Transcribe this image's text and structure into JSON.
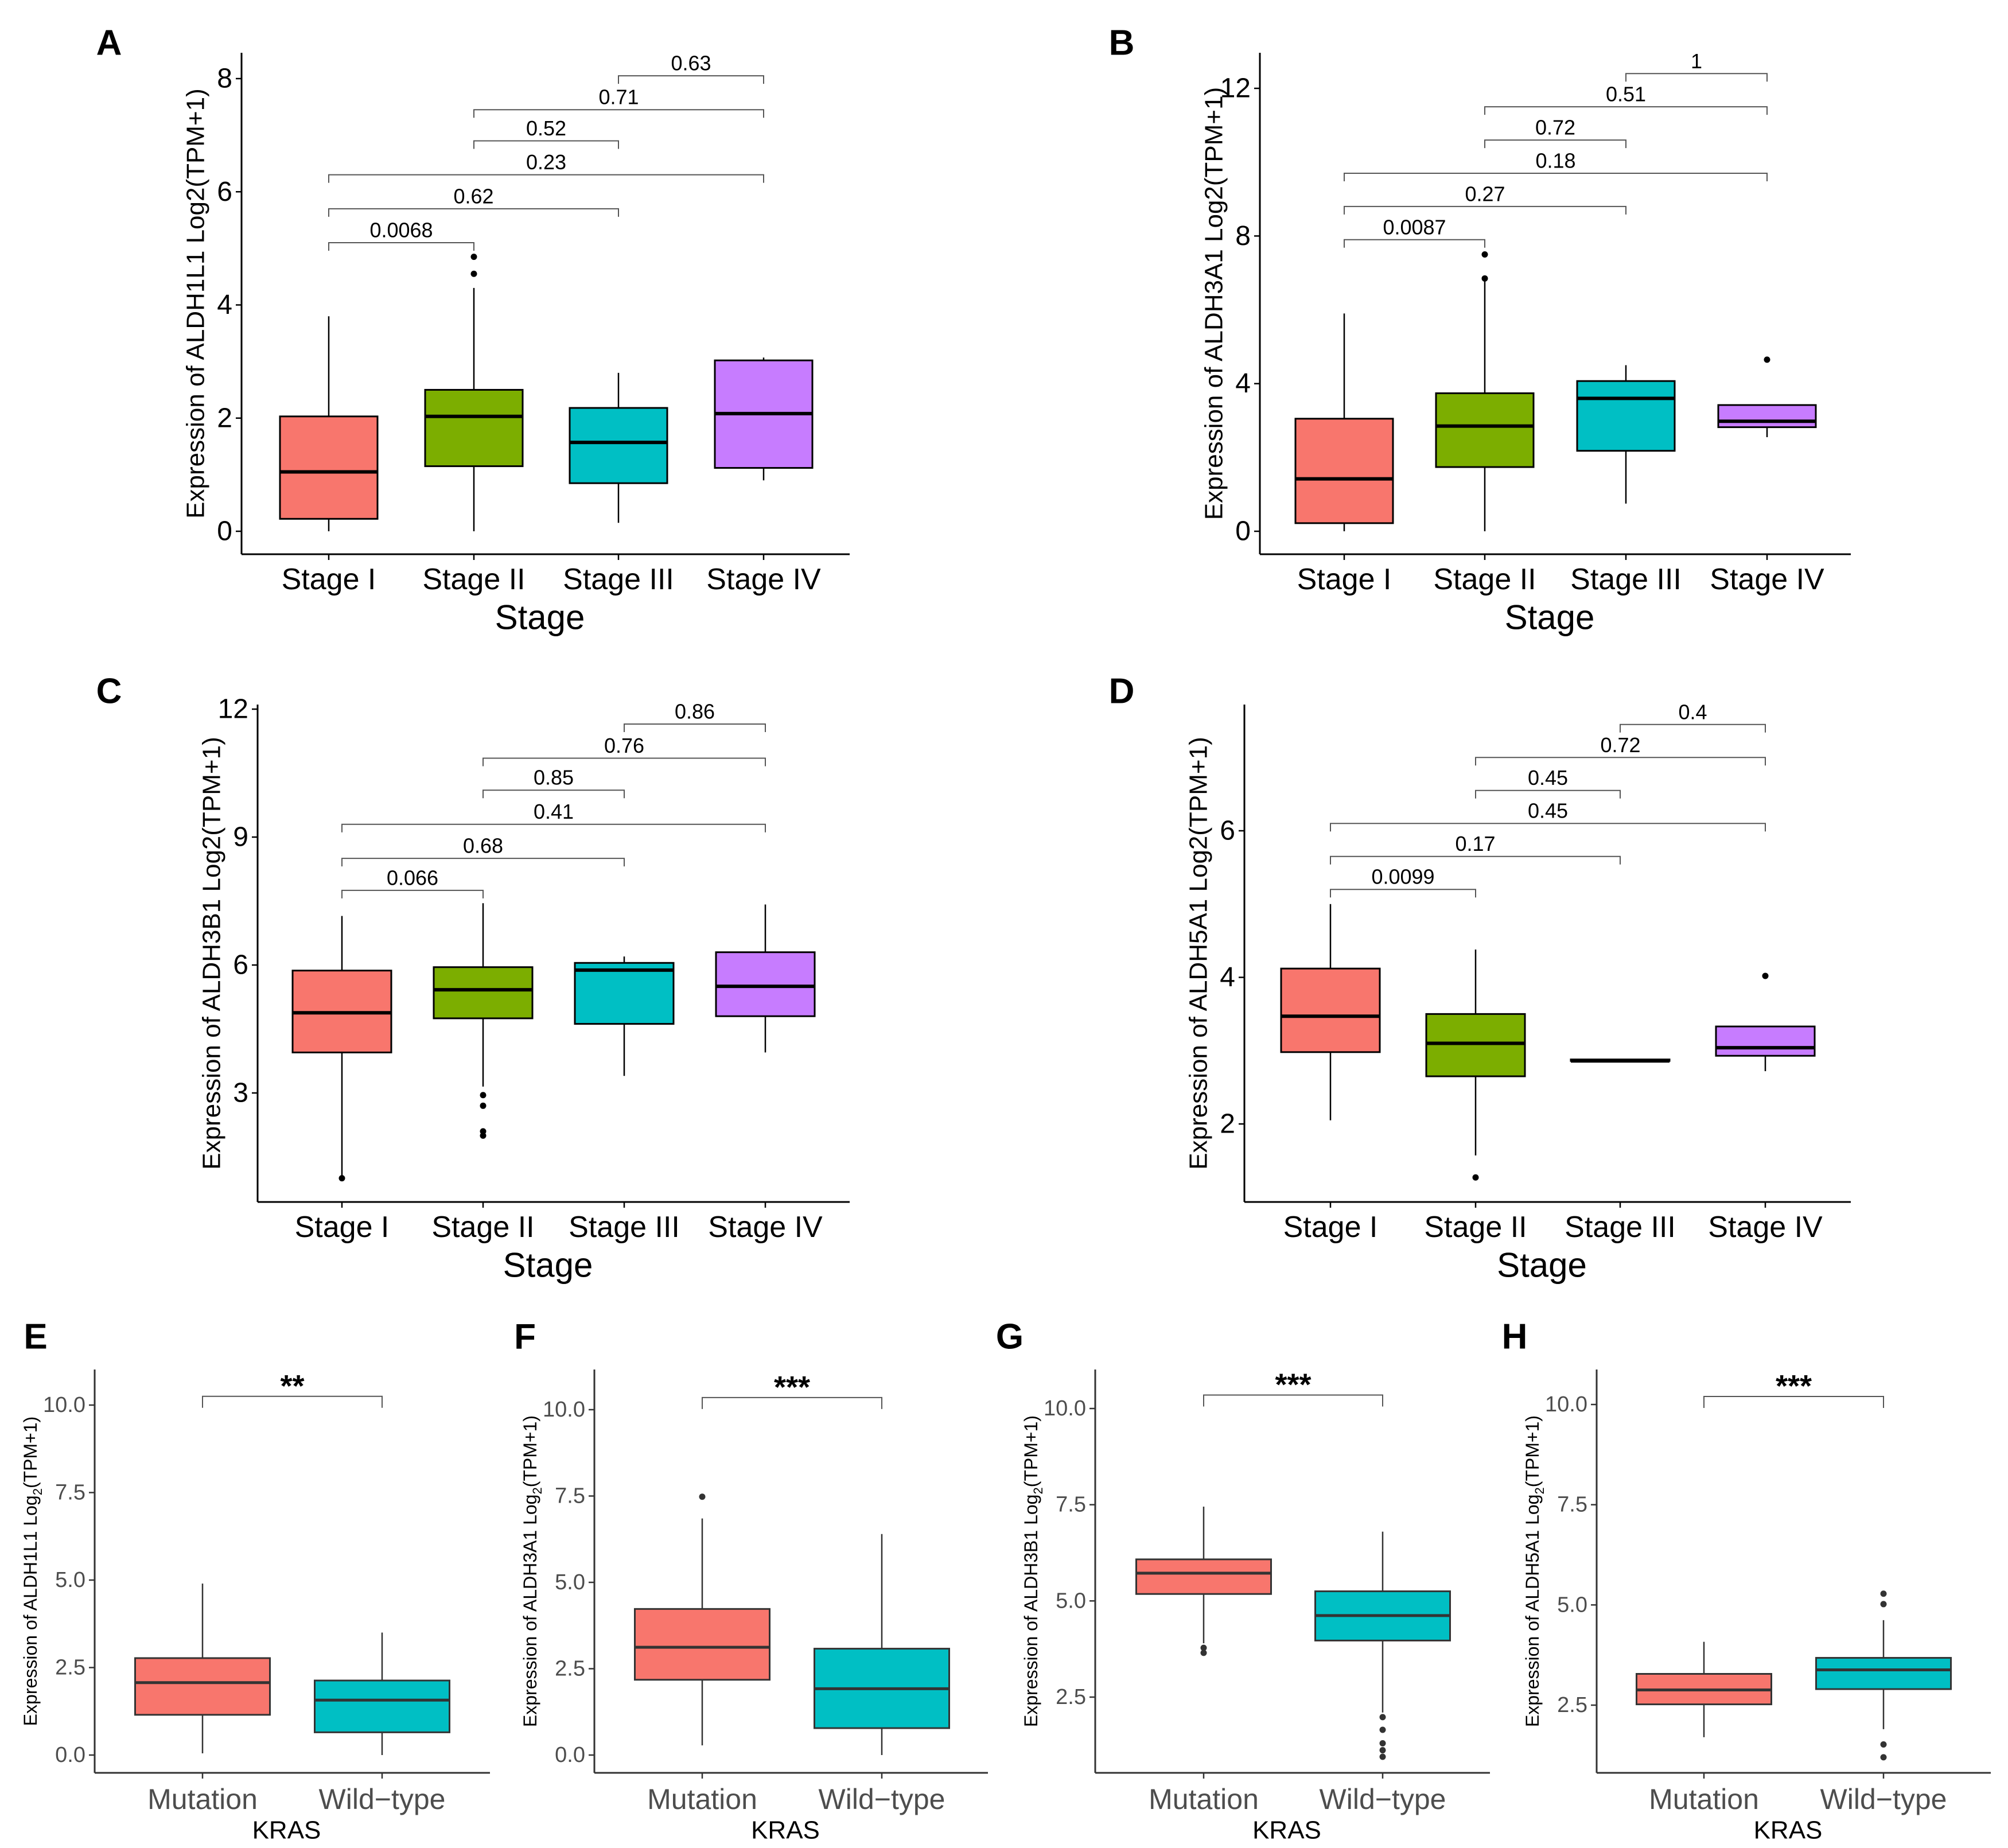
{
  "figure_title": "",
  "chart_data": [
    {
      "panel": "A",
      "type": "boxplot",
      "ylabel": "Expression of ALDH1L1 Log2(TPM+1)",
      "xlabel": "Stage",
      "categories": [
        "Stage I",
        "Stage II",
        "Stage III",
        "Stage IV"
      ],
      "yticks": [
        "0",
        "2",
        "4",
        "6",
        "8"
      ],
      "ytick_values": [
        0,
        2,
        4,
        6,
        8
      ],
      "ylim": [
        -0.9,
        8.5
      ],
      "colors": [
        "#F8766D",
        "#7CAE00",
        "#00BFC4",
        "#C77CFF"
      ],
      "boxes": [
        {
          "min": 0.0,
          "q1": 0.22,
          "median": 1.05,
          "q3": 2.03,
          "max": 3.8,
          "outliers": []
        },
        {
          "min": 0.0,
          "q1": 1.15,
          "median": 2.03,
          "q3": 2.5,
          "max": 4.3,
          "outliers": [
            4.55,
            4.85
          ]
        },
        {
          "min": 0.15,
          "q1": 0.85,
          "median": 1.57,
          "q3": 2.18,
          "max": 2.8,
          "outliers": []
        },
        {
          "min": 0.9,
          "q1": 1.12,
          "median": 2.08,
          "q3": 3.02,
          "max": 3.07,
          "outliers": []
        }
      ],
      "comparisons": [
        {
          "from": 0,
          "to": 1,
          "y": 5.1,
          "label": "0.0068"
        },
        {
          "from": 0,
          "to": 2,
          "y": 5.7,
          "label": "0.62"
        },
        {
          "from": 0,
          "to": 3,
          "y": 6.3,
          "label": "0.23"
        },
        {
          "from": 1,
          "to": 2,
          "y": 6.9,
          "label": "0.52"
        },
        {
          "from": 1,
          "to": 3,
          "y": 7.45,
          "label": "0.71"
        },
        {
          "from": 2,
          "to": 3,
          "y": 8.05,
          "label": "0.63"
        }
      ]
    },
    {
      "panel": "B",
      "type": "boxplot",
      "ylabel": "Expression of ALDH3A1 Log2(TPM+1)",
      "xlabel": "Stage",
      "categories": [
        "Stage I",
        "Stage II",
        "Stage III",
        "Stage IV"
      ],
      "yticks": [
        "0",
        "4",
        "8",
        "12"
      ],
      "ytick_values": [
        0,
        4,
        8,
        12
      ],
      "ylim": [
        -0.6,
        12.9
      ],
      "colors": [
        "#F8766D",
        "#7CAE00",
        "#00BFC4",
        "#C77CFF"
      ],
      "boxes": [
        {
          "min": 0.0,
          "q1": 0.22,
          "median": 1.42,
          "q3": 3.05,
          "max": 5.9,
          "outliers": []
        },
        {
          "min": 0.0,
          "q1": 1.74,
          "median": 2.85,
          "q3": 3.74,
          "max": 6.8,
          "outliers": [
            6.85,
            7.5
          ]
        },
        {
          "min": 0.75,
          "q1": 2.18,
          "median": 3.6,
          "q3": 4.07,
          "max": 4.5,
          "outliers": []
        },
        {
          "min": 2.55,
          "q1": 2.82,
          "median": 2.98,
          "q3": 3.42,
          "max": 3.42,
          "outliers": [
            4.65
          ]
        }
      ],
      "comparisons": [
        {
          "from": 0,
          "to": 1,
          "y": 7.9,
          "label": "0.0087"
        },
        {
          "from": 0,
          "to": 2,
          "y": 8.8,
          "label": "0.27"
        },
        {
          "from": 0,
          "to": 3,
          "y": 9.7,
          "label": "0.18"
        },
        {
          "from": 1,
          "to": 2,
          "y": 10.6,
          "label": "0.72"
        },
        {
          "from": 1,
          "to": 3,
          "y": 11.5,
          "label": "0.51"
        },
        {
          "from": 2,
          "to": 3,
          "y": 12.4,
          "label": "1"
        }
      ]
    },
    {
      "panel": "C",
      "type": "boxplot",
      "ylabel": "Expression of ALDH3B1 Log2(TPM+1)",
      "xlabel": "Stage",
      "categories": [
        "Stage I",
        "Stage II",
        "Stage III",
        "Stage IV"
      ],
      "yticks": [
        "3",
        "6",
        "9",
        "12"
      ],
      "ytick_values": [
        3,
        6,
        9,
        12
      ],
      "ylim": [
        0.4,
        12.1
      ],
      "colors": [
        "#F8766D",
        "#7CAE00",
        "#00BFC4",
        "#C77CFF"
      ],
      "boxes": [
        {
          "min": 1.0,
          "q1": 3.95,
          "median": 4.88,
          "q3": 5.87,
          "max": 7.15,
          "outliers": [
            1.0
          ]
        },
        {
          "min": 3.15,
          "q1": 4.75,
          "median": 5.42,
          "q3": 5.95,
          "max": 7.45,
          "outliers": [
            2.0,
            2.1,
            2.7,
            2.95
          ]
        },
        {
          "min": 3.4,
          "q1": 4.62,
          "median": 5.88,
          "q3": 6.05,
          "max": 6.2,
          "outliers": []
        },
        {
          "min": 3.95,
          "q1": 4.8,
          "median": 5.5,
          "q3": 6.3,
          "max": 7.42,
          "outliers": []
        }
      ],
      "comparisons": [
        {
          "from": 0,
          "to": 1,
          "y": 7.75,
          "label": "0.066"
        },
        {
          "from": 0,
          "to": 2,
          "y": 8.5,
          "label": "0.68"
        },
        {
          "from": 0,
          "to": 3,
          "y": 9.3,
          "label": "0.41"
        },
        {
          "from": 1,
          "to": 2,
          "y": 10.1,
          "label": "0.85"
        },
        {
          "from": 1,
          "to": 3,
          "y": 10.85,
          "label": "0.76"
        },
        {
          "from": 2,
          "to": 3,
          "y": 11.65,
          "label": "0.86"
        }
      ]
    },
    {
      "panel": "D",
      "type": "boxplot",
      "ylabel": "Expression of ALDH5A1 Log2(TPM+1)",
      "xlabel": "Stage",
      "categories": [
        "Stage I",
        "Stage II",
        "Stage III",
        "Stage IV"
      ],
      "yticks": [
        "2",
        "4",
        "6"
      ],
      "ytick_values": [
        2,
        4,
        6
      ],
      "ylim": [
        0.95,
        7.8
      ],
      "colors": [
        "#F8766D",
        "#7CAE00",
        "#00BFC4",
        "#C77CFF"
      ],
      "boxes": [
        {
          "min": 2.05,
          "q1": 2.98,
          "median": 3.47,
          "q3": 4.12,
          "max": 5.0,
          "outliers": []
        },
        {
          "min": 1.57,
          "q1": 2.65,
          "median": 3.1,
          "q3": 3.5,
          "max": 4.38,
          "outliers": [
            1.27
          ]
        },
        {
          "min": 2.86,
          "q1": 2.86,
          "median": 2.86,
          "q3": 2.88,
          "max": 2.88,
          "outliers": []
        },
        {
          "min": 2.72,
          "q1": 2.93,
          "median": 3.04,
          "q3": 3.33,
          "max": 3.33,
          "outliers": [
            4.02
          ]
        }
      ],
      "comparisons": [
        {
          "from": 0,
          "to": 1,
          "y": 5.2,
          "label": "0.0099"
        },
        {
          "from": 0,
          "to": 2,
          "y": 5.65,
          "label": "0.17"
        },
        {
          "from": 0,
          "to": 3,
          "y": 6.1,
          "label": "0.45"
        },
        {
          "from": 1,
          "to": 2,
          "y": 6.55,
          "label": "0.45"
        },
        {
          "from": 1,
          "to": 3,
          "y": 7.0,
          "label": "0.72"
        },
        {
          "from": 2,
          "to": 3,
          "y": 7.45,
          "label": "0.4"
        }
      ]
    },
    {
      "panel": "E",
      "type": "boxplot",
      "ylabel_prefix": "Expression of ALDH1L1 Log",
      "ylabel_sub": "2",
      "ylabel_suffix": "(TPM+1)",
      "xlabel": "KRAS",
      "categories": [
        "Mutation",
        "Wild−type"
      ],
      "yticks": [
        "0.0",
        "2.5",
        "5.0",
        "7.5",
        "10.0"
      ],
      "ytick_values": [
        0,
        2.5,
        5,
        7.5,
        10
      ],
      "ylim": [
        -0.5,
        10.8
      ],
      "colors": [
        "#F8766D",
        "#00BFC4"
      ],
      "boxes": [
        {
          "min": 0.05,
          "q1": 1.15,
          "median": 2.07,
          "q3": 2.77,
          "max": 4.9,
          "outliers": []
        },
        {
          "min": 0.0,
          "q1": 0.65,
          "median": 1.57,
          "q3": 2.13,
          "max": 3.5,
          "outliers": []
        }
      ],
      "comparisons": [
        {
          "from": 0,
          "to": 1,
          "y": 10.25,
          "label": "**"
        }
      ]
    },
    {
      "panel": "F",
      "type": "boxplot",
      "ylabel_prefix": "Expression of ALDH3A1 Log",
      "ylabel_sub": "2",
      "ylabel_suffix": "(TPM+1)",
      "xlabel": "KRAS",
      "categories": [
        "Mutation",
        "Wild−type"
      ],
      "yticks": [
        "0.0",
        "2.5",
        "5.0",
        "7.5",
        "10.0"
      ],
      "ytick_values": [
        0,
        2.5,
        5,
        7.5,
        10
      ],
      "ylim": [
        -0.5,
        10.9
      ],
      "colors": [
        "#F8766D",
        "#00BFC4"
      ],
      "boxes": [
        {
          "min": 0.28,
          "q1": 2.18,
          "median": 3.12,
          "q3": 4.23,
          "max": 6.85,
          "outliers": [
            7.48
          ]
        },
        {
          "min": 0.0,
          "q1": 0.78,
          "median": 1.92,
          "q3": 3.08,
          "max": 6.4,
          "outliers": []
        }
      ],
      "comparisons": [
        {
          "from": 0,
          "to": 1,
          "y": 10.35,
          "label": "***"
        }
      ]
    },
    {
      "panel": "G",
      "type": "boxplot",
      "ylabel_prefix": "Expression of ALDH3B1 Log",
      "ylabel_sub": "2",
      "ylabel_suffix": "(TPM+1)",
      "xlabel": "KRAS",
      "categories": [
        "Mutation",
        "Wild−type"
      ],
      "yticks": [
        "2.5",
        "5.0",
        "7.5",
        "10.0"
      ],
      "ytick_values": [
        2.5,
        5,
        7.5,
        10
      ],
      "ylim": [
        0.4,
        10.75
      ],
      "colors": [
        "#F8766D",
        "#00BFC4"
      ],
      "boxes": [
        {
          "min": 3.9,
          "q1": 5.18,
          "median": 5.72,
          "q3": 6.08,
          "max": 7.45,
          "outliers": [
            3.65,
            3.78
          ]
        },
        {
          "min": 2.1,
          "q1": 3.97,
          "median": 4.62,
          "q3": 5.25,
          "max": 6.8,
          "outliers": [
            0.95,
            1.12,
            1.3,
            1.65,
            1.98
          ]
        }
      ],
      "comparisons": [
        {
          "from": 0,
          "to": 1,
          "y": 10.35,
          "label": "***"
        }
      ]
    },
    {
      "panel": "H",
      "type": "boxplot",
      "ylabel_prefix": "Expression of ALDH5A1 Log",
      "ylabel_sub": "2",
      "ylabel_suffix": "(TPM+1)",
      "xlabel": "KRAS",
      "categories": [
        "Mutation",
        "Wild−type"
      ],
      "yticks": [
        "2.5",
        "5.0",
        "7.5",
        "10.0"
      ],
      "ytick_values": [
        2.5,
        5,
        7.5,
        10
      ],
      "ylim": [
        0.75,
        10.65
      ],
      "colors": [
        "#F8766D",
        "#00BFC4"
      ],
      "boxes": [
        {
          "min": 1.7,
          "q1": 2.52,
          "median": 2.88,
          "q3": 3.28,
          "max": 4.08,
          "outliers": []
        },
        {
          "min": 1.9,
          "q1": 2.9,
          "median": 3.38,
          "q3": 3.68,
          "max": 4.62,
          "outliers": [
            1.2,
            1.52,
            5.02,
            5.28
          ]
        }
      ],
      "comparisons": [
        {
          "from": 0,
          "to": 1,
          "y": 10.2,
          "label": "***"
        }
      ]
    }
  ]
}
